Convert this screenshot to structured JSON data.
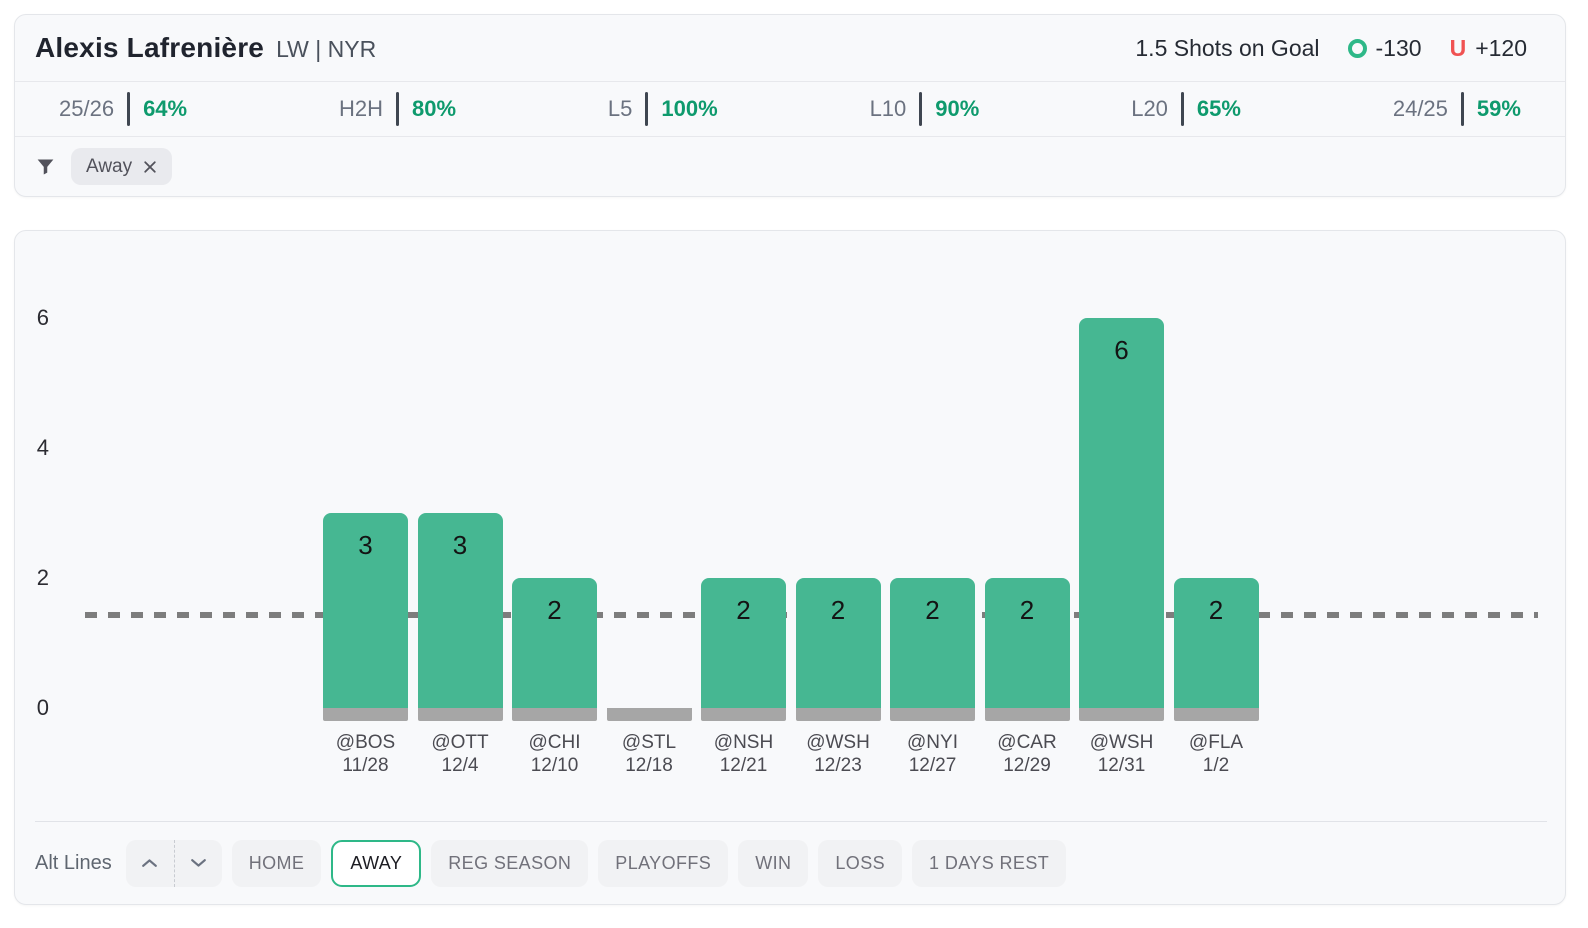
{
  "header": {
    "player_name": "Alexis Lafrenière",
    "player_meta": "LW | NYR",
    "prop_label": "1.5 Shots on Goal",
    "over_odds": "-130",
    "under_symbol": "U",
    "under_odds": "+120"
  },
  "stats": {
    "items": [
      {
        "label": "25/26",
        "value": "64%"
      },
      {
        "label": "H2H",
        "value": "80%"
      },
      {
        "label": "L5",
        "value": "100%"
      },
      {
        "label": "L10",
        "value": "90%"
      },
      {
        "label": "L20",
        "value": "65%"
      },
      {
        "label": "24/25",
        "value": "59%"
      }
    ]
  },
  "filters": {
    "chips": [
      {
        "label": "Away"
      }
    ]
  },
  "chart_data": {
    "type": "bar",
    "title": "",
    "xlabel": "",
    "ylabel": "",
    "categories": [
      "@BOS",
      "@OTT",
      "@CHI",
      "@STL",
      "@NSH",
      "@WSH",
      "@NYI",
      "@CAR",
      "@WSH",
      "@FLA"
    ],
    "dates": [
      "11/28",
      "12/4",
      "12/10",
      "12/18",
      "12/21",
      "12/23",
      "12/27",
      "12/29",
      "12/31",
      "1/2"
    ],
    "values": [
      3,
      3,
      2,
      0,
      2,
      2,
      2,
      2,
      6,
      2
    ],
    "prop_line": 1.5,
    "yticks": [
      0,
      2,
      4,
      6
    ],
    "ylim": [
      0,
      6.6
    ],
    "grid": false,
    "legend": "none",
    "bar_color": "#46b792",
    "bar_base_color": "#a6a6a6",
    "line_color": "#7d7d7d"
  },
  "controls": {
    "alt_lines_label": "Alt Lines",
    "buttons": [
      {
        "label": "HOME",
        "active": false
      },
      {
        "label": "AWAY",
        "active": true
      },
      {
        "label": "REG SEASON",
        "active": false
      },
      {
        "label": "PLAYOFFS",
        "active": false
      },
      {
        "label": "WIN",
        "active": false
      },
      {
        "label": "LOSS",
        "active": false
      },
      {
        "label": "1 DAYS REST",
        "active": false
      }
    ]
  },
  "colors": {
    "accent_green": "#2eb888",
    "stat_green": "#0e9a6d",
    "under_red": "#f05252",
    "bar_green": "#46b792",
    "bar_base_gray": "#a6a6a6",
    "prop_line_gray": "#7d7d7d"
  }
}
